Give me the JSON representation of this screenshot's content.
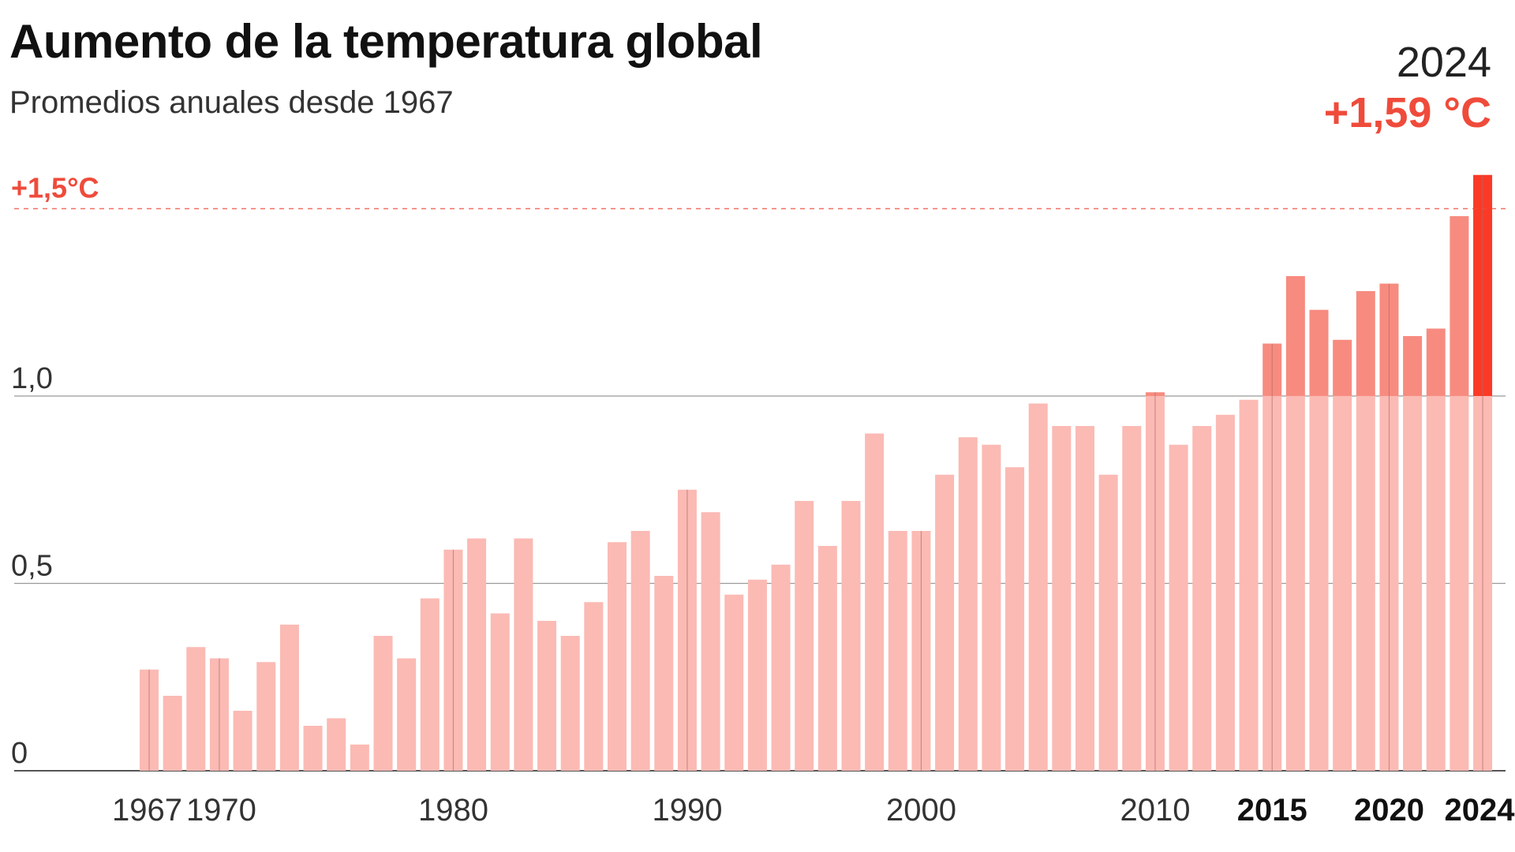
{
  "title": "Aumento de la temperatura global",
  "subtitle": "Promedios anuales desde 1967",
  "highlight": {
    "year": "2024",
    "value": "+1,59 °C"
  },
  "threshold": {
    "label": "+1,5°C",
    "value": 1.5
  },
  "colors": {
    "bar": "#fbbab4",
    "bar_above": "#f78b80",
    "bar_latest": "#fa3a26",
    "accent": "#ef4b3b",
    "grid": "#999999",
    "axis": "#555555"
  },
  "chart_data": {
    "type": "bar",
    "title": "Aumento de la temperatura global",
    "subtitle": "Promedios anuales desde 1967",
    "xlabel": "",
    "ylabel": "",
    "ylim": [
      0,
      1.6
    ],
    "yticks": [
      0,
      0.5,
      1.0
    ],
    "ytick_labels": [
      "0",
      "0,5",
      "1,0"
    ],
    "xtick_years": [
      1967,
      1970,
      1980,
      1990,
      2000,
      2010,
      2015,
      2020,
      2024
    ],
    "xtick_bold": [
      2015,
      2020,
      2024
    ],
    "threshold": 1.5,
    "categories": [
      1967,
      1968,
      1969,
      1970,
      1971,
      1972,
      1973,
      1974,
      1975,
      1976,
      1977,
      1978,
      1979,
      1980,
      1981,
      1982,
      1983,
      1984,
      1985,
      1986,
      1987,
      1988,
      1989,
      1990,
      1991,
      1992,
      1993,
      1994,
      1995,
      1996,
      1997,
      1998,
      1999,
      2000,
      2001,
      2002,
      2003,
      2004,
      2005,
      2006,
      2007,
      2008,
      2009,
      2010,
      2011,
      2012,
      2013,
      2014,
      2015,
      2016,
      2017,
      2018,
      2019,
      2020,
      2021,
      2022,
      2023,
      2024
    ],
    "values": [
      0.27,
      0.2,
      0.33,
      0.3,
      0.16,
      0.29,
      0.39,
      0.12,
      0.14,
      0.07,
      0.36,
      0.3,
      0.46,
      0.59,
      0.62,
      0.42,
      0.62,
      0.4,
      0.36,
      0.45,
      0.61,
      0.64,
      0.52,
      0.75,
      0.69,
      0.47,
      0.51,
      0.55,
      0.72,
      0.6,
      0.72,
      0.9,
      0.64,
      0.64,
      0.79,
      0.89,
      0.87,
      0.81,
      0.98,
      0.92,
      0.92,
      0.79,
      0.92,
      1.01,
      0.87,
      0.92,
      0.95,
      0.99,
      1.14,
      1.32,
      1.23,
      1.15,
      1.28,
      1.3,
      1.16,
      1.18,
      1.48,
      1.59
    ]
  }
}
